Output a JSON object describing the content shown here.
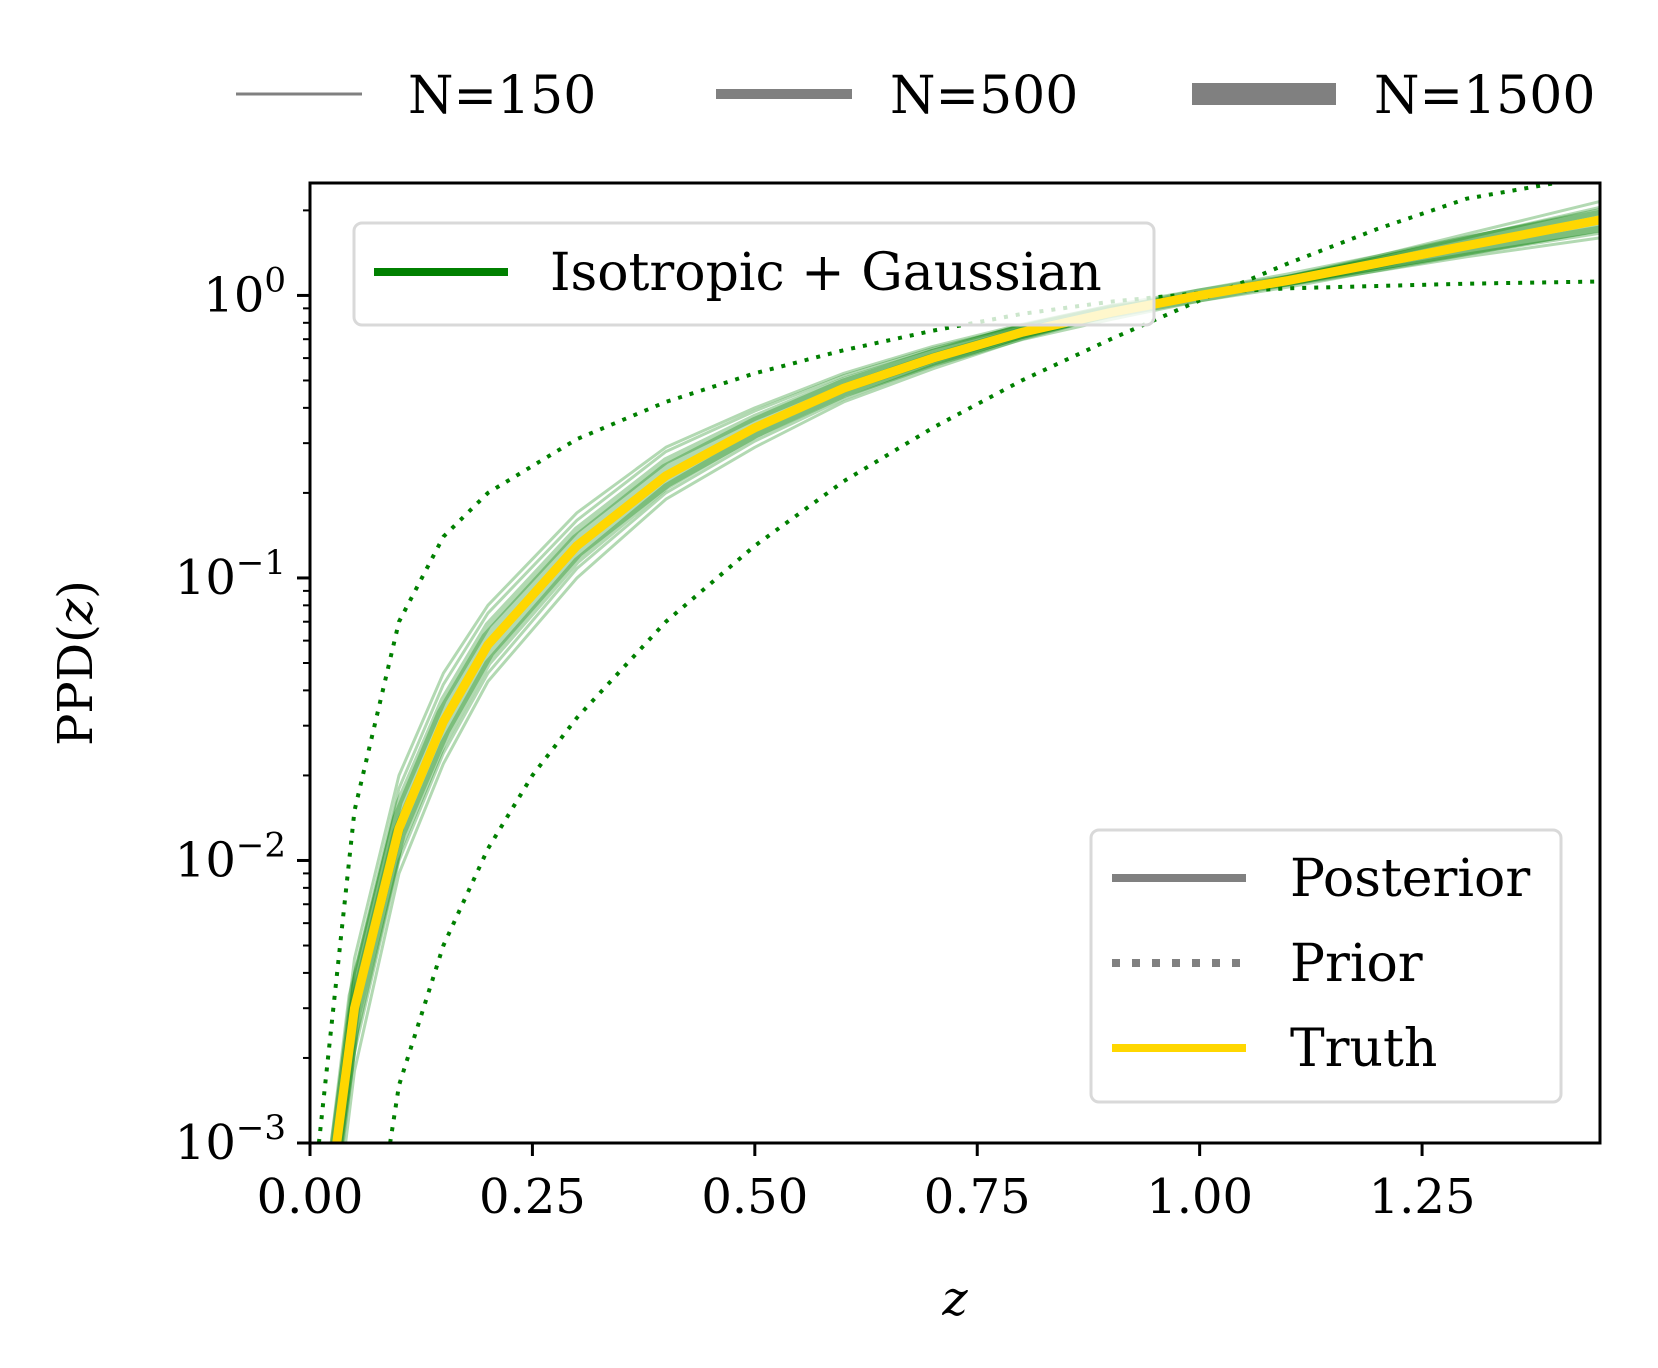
{
  "chart_data": {
    "type": "line",
    "title": "",
    "xlabel": "z",
    "ylabel_prefix": "PPD(",
    "ylabel_var": "z",
    "ylabel_suffix": ")",
    "yscale": "log",
    "xlim": [
      0.0,
      1.45
    ],
    "ylim": [
      0.001,
      2.5
    ],
    "x_ticks": [
      0.0,
      0.25,
      0.5,
      0.75,
      1.0,
      1.25
    ],
    "x_tick_labels": [
      "0.00",
      "0.25",
      "0.50",
      "0.75",
      "1.00",
      "1.25"
    ],
    "y_ticks": [
      0.001,
      0.01,
      0.1,
      1.0
    ],
    "y_tick_labels": [
      {
        "base": "10",
        "exp": "−3"
      },
      {
        "base": "10",
        "exp": "−2"
      },
      {
        "base": "10",
        "exp": "−1"
      },
      {
        "base": "10",
        "exp": "0"
      }
    ],
    "top_legend": [
      {
        "label": "N=150",
        "weight": "thin"
      },
      {
        "label": "N=500",
        "weight": "medium"
      },
      {
        "label": "N=1500",
        "weight": "thick"
      }
    ],
    "model_legend": {
      "label": "Isotropic + Gaussian",
      "color": "#008000"
    },
    "style_legend": [
      {
        "label": "Posterior",
        "style": "solid",
        "color": "#808080"
      },
      {
        "label": "Prior",
        "style": "dotted",
        "color": "#808080"
      },
      {
        "label": "Truth",
        "style": "solid",
        "color": "#FFD700"
      }
    ],
    "series": [
      {
        "name": "Truth",
        "style": "truth",
        "color": "#FFD700",
        "x": [
          0.03,
          0.05,
          0.1,
          0.15,
          0.2,
          0.3,
          0.4,
          0.5,
          0.6,
          0.7,
          0.8,
          0.9,
          1.0,
          1.1,
          1.2,
          1.3,
          1.45
        ],
        "y": [
          0.001,
          0.003,
          0.013,
          0.031,
          0.058,
          0.13,
          0.23,
          0.34,
          0.47,
          0.6,
          0.74,
          0.87,
          1.0,
          1.13,
          1.3,
          1.5,
          1.85
        ]
      },
      {
        "name": "Prior upper",
        "style": "prior",
        "color": "#008000",
        "x": [
          0.01,
          0.05,
          0.1,
          0.15,
          0.2,
          0.3,
          0.4,
          0.5,
          0.6,
          0.7,
          0.8,
          0.9,
          1.0,
          1.1,
          1.2,
          1.3,
          1.45
        ],
        "y": [
          0.001,
          0.015,
          0.07,
          0.14,
          0.2,
          0.31,
          0.42,
          0.53,
          0.64,
          0.75,
          0.86,
          0.95,
          1.02,
          1.06,
          1.08,
          1.1,
          1.12
        ]
      },
      {
        "name": "Prior lower",
        "style": "prior",
        "color": "#008000",
        "x": [
          0.09,
          0.1,
          0.15,
          0.2,
          0.25,
          0.3,
          0.4,
          0.5,
          0.6,
          0.7,
          0.8,
          0.9,
          1.0,
          1.1,
          1.2,
          1.3,
          1.4
        ],
        "y": [
          0.001,
          0.0016,
          0.005,
          0.011,
          0.02,
          0.032,
          0.07,
          0.13,
          0.22,
          0.34,
          0.5,
          0.7,
          0.96,
          1.3,
          1.72,
          2.2,
          2.5
        ]
      },
      {
        "name": "Posterior N=1500 (a)",
        "style": "posterior",
        "weight": "thick",
        "color": "#008000",
        "x": [
          0.03,
          0.05,
          0.1,
          0.15,
          0.2,
          0.3,
          0.4,
          0.5,
          0.6,
          0.7,
          0.8,
          0.9,
          1.0,
          1.1,
          1.2,
          1.3,
          1.45
        ],
        "y": [
          0.001,
          0.0033,
          0.014,
          0.033,
          0.061,
          0.135,
          0.24,
          0.35,
          0.48,
          0.61,
          0.75,
          0.88,
          1.0,
          1.12,
          1.28,
          1.46,
          1.78
        ]
      },
      {
        "name": "Posterior N=1500 (b)",
        "style": "posterior",
        "weight": "thick",
        "color": "#008000",
        "x": [
          0.03,
          0.05,
          0.1,
          0.15,
          0.2,
          0.3,
          0.4,
          0.5,
          0.6,
          0.7,
          0.8,
          0.9,
          1.0,
          1.1,
          1.2,
          1.3,
          1.45
        ],
        "y": [
          0.001,
          0.0029,
          0.0125,
          0.029,
          0.055,
          0.125,
          0.22,
          0.33,
          0.46,
          0.59,
          0.73,
          0.86,
          1.0,
          1.14,
          1.32,
          1.54,
          1.9
        ]
      },
      {
        "name": "Posterior N=500 (a)",
        "style": "posterior",
        "weight": "medium",
        "color": "#008000",
        "x": [
          0.03,
          0.05,
          0.1,
          0.15,
          0.2,
          0.3,
          0.4,
          0.5,
          0.6,
          0.7,
          0.8,
          0.9,
          1.0,
          1.1,
          1.2,
          1.3,
          1.45
        ],
        "y": [
          0.001,
          0.0036,
          0.016,
          0.037,
          0.068,
          0.148,
          0.26,
          0.37,
          0.5,
          0.63,
          0.77,
          0.9,
          1.0,
          1.11,
          1.26,
          1.43,
          1.72
        ]
      },
      {
        "name": "Posterior N=500 (b)",
        "style": "posterior",
        "weight": "medium",
        "color": "#008000",
        "x": [
          0.035,
          0.05,
          0.1,
          0.15,
          0.2,
          0.3,
          0.4,
          0.5,
          0.6,
          0.7,
          0.8,
          0.9,
          1.0,
          1.1,
          1.2,
          1.3,
          1.45
        ],
        "y": [
          0.001,
          0.0024,
          0.011,
          0.026,
          0.05,
          0.115,
          0.21,
          0.32,
          0.45,
          0.58,
          0.72,
          0.86,
          1.0,
          1.15,
          1.34,
          1.58,
          1.98
        ]
      },
      {
        "name": "Posterior N=150 (a)",
        "style": "posterior",
        "weight": "thin",
        "color": "#008000",
        "x": [
          0.03,
          0.05,
          0.1,
          0.15,
          0.2,
          0.3,
          0.4,
          0.5,
          0.6,
          0.7,
          0.8,
          0.9,
          1.0,
          1.1,
          1.2,
          1.3,
          1.45
        ],
        "y": [
          0.001,
          0.004,
          0.018,
          0.042,
          0.075,
          0.16,
          0.28,
          0.39,
          0.52,
          0.65,
          0.78,
          0.91,
          1.0,
          1.1,
          1.24,
          1.4,
          1.66
        ]
      },
      {
        "name": "Posterior N=150 (b)",
        "style": "posterior",
        "weight": "thin",
        "color": "#008000",
        "x": [
          0.04,
          0.05,
          0.1,
          0.15,
          0.2,
          0.3,
          0.4,
          0.5,
          0.6,
          0.7,
          0.8,
          0.9,
          1.0,
          1.1,
          1.2,
          1.3,
          1.45
        ],
        "y": [
          0.001,
          0.0018,
          0.009,
          0.022,
          0.043,
          0.1,
          0.19,
          0.29,
          0.42,
          0.55,
          0.7,
          0.85,
          1.0,
          1.17,
          1.38,
          1.65,
          2.15
        ]
      },
      {
        "name": "Posterior N=150 (c)",
        "style": "posterior",
        "weight": "thin",
        "color": "#008000",
        "x": [
          0.035,
          0.05,
          0.1,
          0.15,
          0.2,
          0.3,
          0.4,
          0.5,
          0.6,
          0.7,
          0.8,
          0.9,
          1.0,
          1.1,
          1.2,
          1.3,
          1.45
        ],
        "y": [
          0.001,
          0.0021,
          0.01,
          0.024,
          0.046,
          0.108,
          0.2,
          0.305,
          0.43,
          0.565,
          0.71,
          0.855,
          1.0,
          1.16,
          1.36,
          1.6,
          2.05
        ]
      },
      {
        "name": "Posterior N=150 (d)",
        "style": "posterior",
        "weight": "thin",
        "color": "#008000",
        "x": [
          0.025,
          0.05,
          0.1,
          0.15,
          0.2,
          0.3,
          0.4,
          0.5,
          0.6,
          0.7,
          0.8,
          0.9,
          1.0,
          1.1,
          1.2,
          1.3,
          1.45
        ],
        "y": [
          0.001,
          0.0045,
          0.02,
          0.046,
          0.08,
          0.17,
          0.29,
          0.4,
          0.53,
          0.66,
          0.79,
          0.92,
          1.0,
          1.09,
          1.22,
          1.37,
          1.6
        ]
      }
    ]
  }
}
